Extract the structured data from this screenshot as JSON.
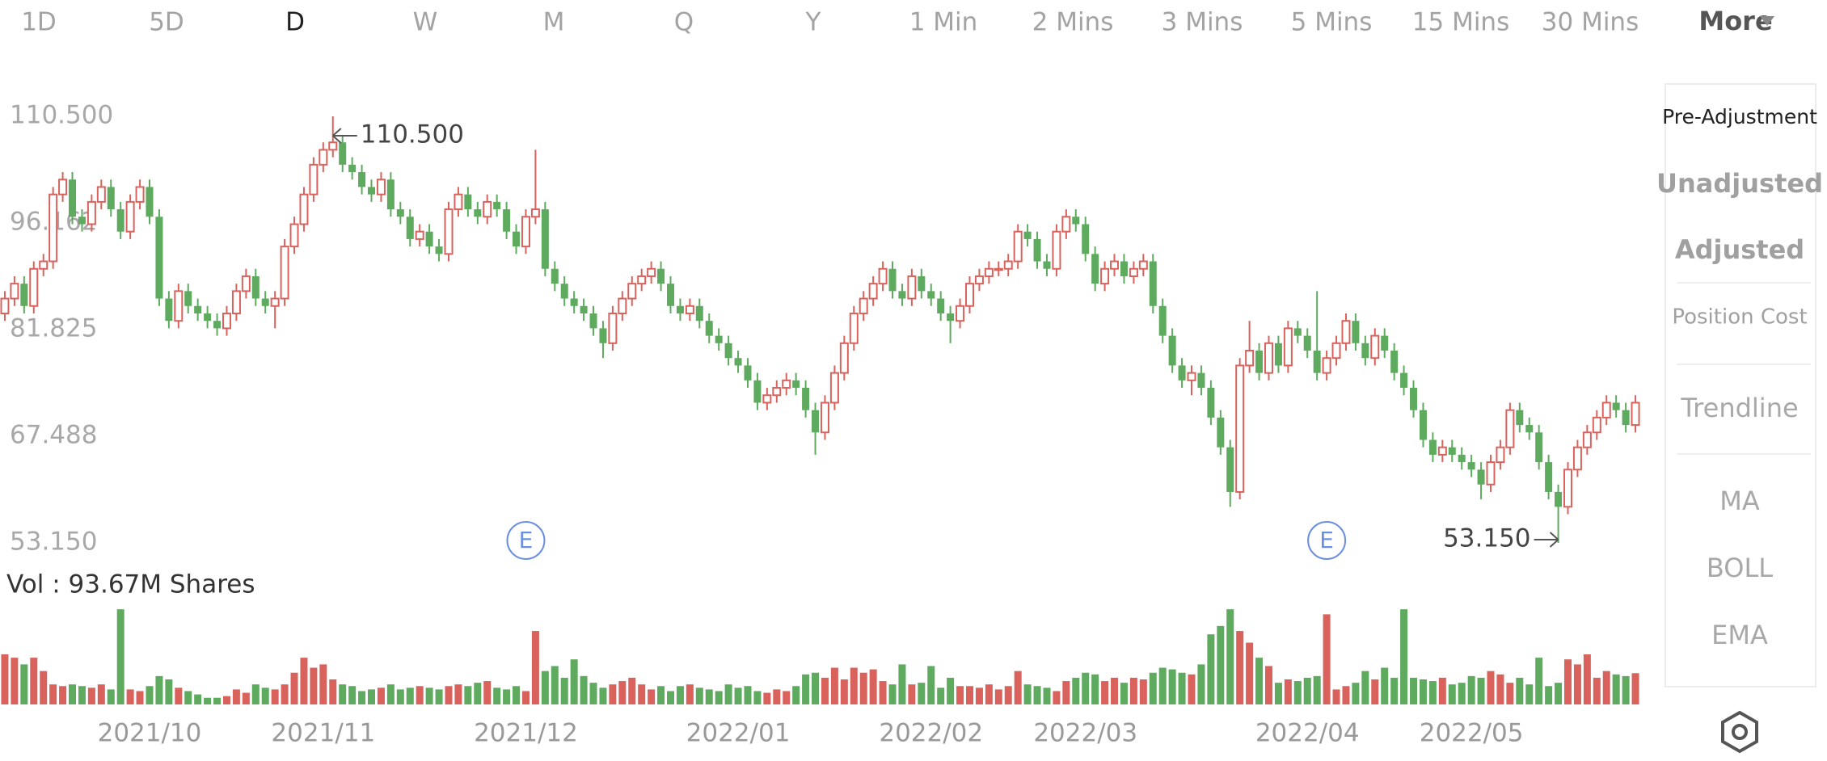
{
  "tabs": [
    "1D",
    "5D",
    "D",
    "W",
    "M",
    "Q",
    "Y",
    "1 Min",
    "2 Mins",
    "3 Mins",
    "5 Mins",
    "15 Mins",
    "30 Mins"
  ],
  "active_tab": 2,
  "more": "More",
  "side_menu": {
    "adjustment": [
      "Pre-Adjustment",
      "Unadjusted",
      "Adjusted",
      "Position Cost"
    ],
    "tools": [
      "Trendline"
    ],
    "indicators": [
      "MA",
      "BOLL",
      "EMA"
    ]
  },
  "chart_data": {
    "type": "candlestick",
    "categories": [
      null,
      null,
      null,
      null,
      null,
      null,
      null,
      null,
      null,
      null,
      null,
      null,
      null,
      null,
      null,
      "2021/10",
      null,
      null,
      null,
      null,
      null,
      null,
      null,
      null,
      null,
      null,
      null,
      null,
      null,
      null,
      null,
      null,
      null,
      "2021/11",
      null,
      null,
      null,
      null,
      null,
      null,
      null,
      null,
      null,
      null,
      null,
      null,
      null,
      null,
      null,
      null,
      null,
      null,
      null,
      null,
      "2021/12",
      null,
      null,
      null,
      null,
      null,
      null,
      null,
      null,
      null,
      null,
      null,
      null,
      null,
      null,
      null,
      null,
      null,
      null,
      null,
      null,
      null,
      "2022/01",
      null,
      null,
      null,
      null,
      null,
      null,
      null,
      null,
      null,
      null,
      null,
      null,
      null,
      null,
      null,
      null,
      null,
      null,
      null,
      "2022/02",
      null,
      null,
      null,
      null,
      null,
      null,
      null,
      null,
      null,
      null,
      null,
      null,
      null,
      null,
      null,
      "2022/03",
      null,
      null,
      null,
      null,
      null,
      null,
      null,
      null,
      null,
      null,
      null,
      null,
      null,
      null,
      null,
      null,
      null,
      null,
      null,
      null,
      null,
      null,
      "2022/04",
      null,
      null,
      null,
      null,
      null,
      null,
      null,
      null,
      null,
      null,
      null,
      null,
      null,
      null,
      null,
      null,
      "2022/05",
      null,
      null,
      null,
      null,
      null,
      null,
      null,
      null,
      null,
      null,
      null,
      null,
      null,
      null,
      null,
      null,
      null
    ],
    "open": [
      84,
      86,
      88,
      85,
      90,
      91,
      100,
      102,
      97,
      96,
      99,
      101,
      98,
      95,
      99,
      101,
      97,
      86,
      83,
      87,
      85,
      84,
      83,
      82,
      84,
      87,
      89,
      86,
      85,
      86,
      93,
      96,
      100,
      104,
      106,
      107,
      104,
      103,
      101,
      100,
      102,
      98,
      97,
      94,
      95,
      93,
      92,
      98,
      100,
      98,
      97,
      99,
      98,
      95,
      93,
      97,
      98,
      90,
      88,
      86,
      85,
      84,
      82,
      80,
      84,
      86,
      88,
      89,
      90,
      88,
      85,
      84,
      85,
      83,
      81,
      80,
      78,
      77,
      75,
      72,
      73,
      74,
      75,
      74,
      71,
      68,
      72,
      76,
      80,
      84,
      86,
      88,
      90,
      87,
      86,
      89,
      87,
      86,
      84,
      83,
      85,
      88,
      89,
      90,
      90,
      91,
      95,
      94,
      91,
      90,
      95,
      97,
      96,
      92,
      88,
      90,
      91,
      89,
      90,
      91,
      85,
      81,
      77,
      75,
      76,
      74,
      70,
      66,
      60,
      77,
      79,
      76,
      80,
      77,
      82,
      81,
      79,
      76,
      78,
      80,
      83,
      80,
      78,
      81,
      79,
      76,
      74,
      71,
      67,
      65,
      66,
      65,
      64,
      63,
      61,
      64,
      66,
      71,
      69,
      68,
      64,
      60,
      58,
      63,
      66,
      68,
      70,
      72,
      71,
      69
    ],
    "high": [
      87,
      89,
      89,
      91,
      92,
      101,
      103,
      103,
      98,
      100,
      102,
      102,
      99,
      100,
      102,
      102,
      98,
      87,
      88,
      88,
      86,
      85,
      84,
      85,
      88,
      90,
      90,
      87,
      87,
      94,
      97,
      101,
      105,
      107,
      110.5,
      108,
      105,
      104,
      102,
      103,
      103,
      99,
      98,
      96,
      96,
      94,
      99,
      101,
      101,
      99,
      100,
      100,
      99,
      96,
      98,
      106,
      99,
      91,
      89,
      87,
      86,
      85,
      83,
      85,
      87,
      89,
      90,
      91,
      91,
      89,
      86,
      86,
      86,
      84,
      82,
      81,
      79,
      78,
      76,
      74,
      75,
      76,
      76,
      75,
      72,
      73,
      77,
      81,
      85,
      87,
      89,
      91,
      91,
      88,
      90,
      90,
      88,
      87,
      85,
      86,
      89,
      90,
      91,
      91,
      92,
      96,
      96,
      95,
      92,
      96,
      98,
      98,
      97,
      93,
      91,
      92,
      92,
      91,
      92,
      92,
      86,
      82,
      78,
      77,
      77,
      75,
      71,
      67,
      78,
      83,
      80,
      81,
      81,
      83,
      83,
      82,
      87,
      79,
      81,
      84,
      84,
      81,
      82,
      82,
      80,
      77,
      75,
      72,
      68,
      67,
      67,
      66,
      65,
      64,
      65,
      67,
      72,
      72,
      70,
      69,
      65,
      61,
      64,
      67,
      69,
      71,
      73,
      73,
      72,
      73
    ],
    "low": [
      83,
      85,
      84,
      84,
      89,
      90,
      99,
      96,
      95,
      95,
      98,
      97,
      94,
      94,
      98,
      96,
      85,
      82,
      82,
      84,
      83,
      82,
      81,
      81,
      83,
      86,
      85,
      84,
      82,
      85,
      92,
      95,
      99,
      103,
      105,
      103,
      102,
      100,
      99,
      99,
      97,
      96,
      93,
      93,
      92,
      91,
      91,
      97,
      97,
      96,
      96,
      97,
      94,
      92,
      92,
      96,
      89,
      87,
      85,
      84,
      83,
      81,
      78,
      79,
      83,
      85,
      87,
      88,
      87,
      84,
      83,
      83,
      82,
      80,
      79,
      77,
      76,
      74,
      71,
      71,
      72,
      73,
      73,
      70,
      65,
      67,
      71,
      75,
      79,
      83,
      85,
      87,
      86,
      85,
      85,
      86,
      85,
      83,
      80,
      82,
      84,
      87,
      88,
      89,
      89,
      90,
      93,
      90,
      89,
      89,
      94,
      95,
      91,
      87,
      87,
      89,
      88,
      88,
      89,
      84,
      80,
      76,
      74,
      73,
      73,
      69,
      65,
      58,
      59,
      76,
      75,
      75,
      76,
      76,
      80,
      78,
      75,
      75,
      77,
      79,
      79,
      77,
      77,
      78,
      75,
      73,
      70,
      66,
      64,
      64,
      64,
      63,
      62,
      59,
      60,
      63,
      65,
      68,
      67,
      63,
      59,
      53.15,
      57,
      62,
      65,
      67,
      69,
      70,
      68,
      68
    ],
    "close": [
      86,
      88,
      85,
      90,
      91,
      100,
      102,
      97,
      96,
      99,
      101,
      98,
      95,
      99,
      101,
      97,
      86,
      83,
      87,
      85,
      84,
      83,
      82,
      84,
      87,
      89,
      86,
      85,
      86,
      93,
      96,
      100,
      104,
      106,
      107,
      104,
      103,
      101,
      100,
      102,
      98,
      97,
      94,
      95,
      93,
      92,
      98,
      100,
      98,
      97,
      99,
      98,
      95,
      93,
      97,
      98,
      90,
      88,
      86,
      85,
      84,
      82,
      80,
      84,
      86,
      88,
      89,
      90,
      88,
      85,
      84,
      85,
      83,
      81,
      80,
      78,
      77,
      75,
      72,
      73,
      74,
      75,
      74,
      71,
      68,
      72,
      76,
      80,
      84,
      86,
      88,
      90,
      87,
      86,
      89,
      87,
      86,
      84,
      83,
      85,
      88,
      89,
      90,
      90,
      91,
      95,
      94,
      91,
      90,
      95,
      97,
      96,
      92,
      88,
      90,
      91,
      89,
      90,
      91,
      85,
      81,
      77,
      75,
      76,
      74,
      70,
      66,
      60,
      77,
      79,
      76,
      80,
      77,
      82,
      81,
      79,
      76,
      78,
      80,
      83,
      80,
      78,
      81,
      79,
      76,
      74,
      71,
      67,
      65,
      66,
      65,
      64,
      63,
      61,
      64,
      66,
      71,
      69,
      68,
      64,
      60,
      58,
      63,
      66,
      68,
      70,
      72,
      71,
      69,
      72
    ],
    "ylim": [
      53.15,
      110.5
    ],
    "yticks": [
      {
        "value": 110.5,
        "label": "110.500"
      },
      96.162,
      81.825,
      67.488,
      {
        "value": 53.15,
        "label": "53.150"
      }
    ],
    "up_color": "#d9625c",
    "down_color": "#5eaa5f",
    "max_label": "110.500",
    "min_label": "53.150",
    "events": [
      "E",
      "E"
    ],
    "volume": {
      "label": "Vol  : 93.67M Shares",
      "ylim": [
        0,
        300
      ],
      "values": [
        150,
        140,
        120,
        140,
        100,
        60,
        55,
        60,
        55,
        50,
        60,
        45,
        285,
        45,
        40,
        55,
        85,
        75,
        50,
        40,
        30,
        20,
        20,
        25,
        45,
        35,
        60,
        50,
        45,
        60,
        95,
        140,
        110,
        120,
        75,
        60,
        55,
        40,
        45,
        50,
        60,
        45,
        50,
        55,
        50,
        45,
        55,
        60,
        55,
        65,
        70,
        50,
        45,
        55,
        40,
        220,
        100,
        115,
        80,
        135,
        85,
        65,
        50,
        60,
        70,
        80,
        60,
        45,
        55,
        40,
        55,
        60,
        50,
        45,
        40,
        60,
        50,
        55,
        40,
        35,
        45,
        40,
        55,
        90,
        95,
        80,
        110,
        75,
        110,
        95,
        105,
        70,
        60,
        120,
        60,
        65,
        115,
        50,
        80,
        55,
        55,
        50,
        60,
        45,
        55,
        100,
        60,
        55,
        50,
        40,
        70,
        80,
        95,
        90,
        70,
        80,
        65,
        80,
        75,
        95,
        110,
        105,
        95,
        90,
        120,
        210,
        235,
        285,
        220,
        185,
        140,
        115,
        65,
        75,
        70,
        80,
        85,
        270,
        45,
        55,
        65,
        100,
        75,
        110,
        80,
        285,
        80,
        75,
        70,
        80,
        60,
        65,
        85,
        80,
        100,
        90,
        65,
        80,
        60,
        140,
        55,
        65,
        135,
        120,
        150,
        80,
        100,
        90,
        85,
        93.67
      ]
    }
  }
}
